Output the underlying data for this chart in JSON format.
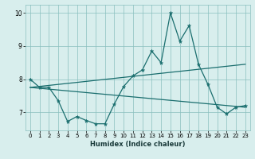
{
  "xlabel": "Humidex (Indice chaleur)",
  "bg_color": "#d8eeed",
  "grid_color": "#89bfbf",
  "line_color": "#1a6e6e",
  "xlim": [
    -0.5,
    23.5
  ],
  "ylim": [
    6.45,
    10.25
  ],
  "yticks": [
    7,
    8,
    9,
    10
  ],
  "xticks": [
    0,
    1,
    2,
    3,
    4,
    5,
    6,
    7,
    8,
    9,
    10,
    11,
    12,
    13,
    14,
    15,
    16,
    17,
    18,
    19,
    20,
    21,
    22,
    23
  ],
  "line1_x": [
    0,
    1,
    2,
    3,
    4,
    5,
    6,
    7,
    8,
    9,
    10,
    11,
    12,
    13,
    14,
    15,
    16,
    17,
    18,
    19,
    20,
    21,
    22,
    23
  ],
  "line1_y": [
    8.0,
    7.75,
    7.75,
    7.35,
    6.72,
    6.87,
    6.75,
    6.65,
    6.65,
    7.25,
    7.78,
    8.1,
    8.28,
    8.85,
    8.5,
    10.0,
    9.15,
    9.62,
    8.45,
    7.85,
    7.15,
    6.95,
    7.15,
    7.2
  ],
  "line2_x": [
    0,
    23
  ],
  "line2_y": [
    7.75,
    8.45
  ],
  "line3_x": [
    0,
    23
  ],
  "line3_y": [
    7.75,
    7.15
  ]
}
